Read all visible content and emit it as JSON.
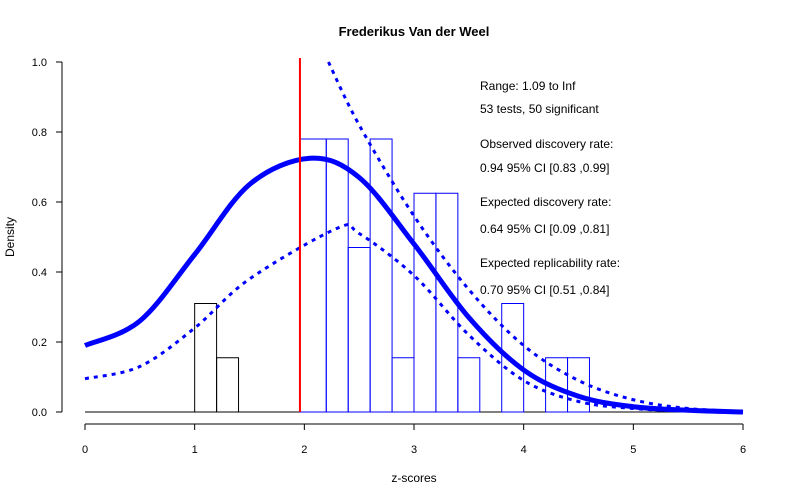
{
  "chart_data": {
    "type": "histogram",
    "title": "Frederikus Van der Weel",
    "xlabel": "z-scores",
    "ylabel": "Density",
    "xlim": [
      0,
      6
    ],
    "ylim": [
      0,
      1.0
    ],
    "x_ticks": [
      "0",
      "1",
      "2",
      "3",
      "4",
      "5",
      "6"
    ],
    "y_ticks": [
      "0.0",
      "0.2",
      "0.4",
      "0.6",
      "0.8",
      "1.0"
    ],
    "bin_width": 0.2,
    "bars_nonsignificant": [
      {
        "x0": 1.0,
        "x1": 1.2,
        "density": 0.31
      },
      {
        "x0": 1.2,
        "x1": 1.4,
        "density": 0.155
      }
    ],
    "bars_significant": [
      {
        "x0": 1.96,
        "x1": 2.2,
        "density": 0.78
      },
      {
        "x0": 2.2,
        "x1": 2.4,
        "density": 0.78
      },
      {
        "x0": 2.4,
        "x1": 2.6,
        "density": 0.47
      },
      {
        "x0": 2.6,
        "x1": 2.8,
        "density": 0.78
      },
      {
        "x0": 2.8,
        "x1": 3.0,
        "density": 0.155
      },
      {
        "x0": 3.0,
        "x1": 3.2,
        "density": 0.625
      },
      {
        "x0": 3.2,
        "x1": 3.4,
        "density": 0.625
      },
      {
        "x0": 3.4,
        "x1": 3.6,
        "density": 0.155
      },
      {
        "x0": 3.6,
        "x1": 3.8,
        "density": 0.0
      },
      {
        "x0": 3.8,
        "x1": 4.0,
        "density": 0.31
      },
      {
        "x0": 4.0,
        "x1": 4.2,
        "density": 0.0
      },
      {
        "x0": 4.2,
        "x1": 4.4,
        "density": 0.155
      },
      {
        "x0": 4.4,
        "x1": 4.6,
        "density": 0.155
      }
    ],
    "significance_line_x": 1.96,
    "solid_curve": {
      "x": [
        0,
        0.5,
        1.0,
        1.5,
        2.05,
        2.5,
        3.0,
        3.5,
        4.0,
        4.5,
        5.0,
        5.5,
        6.0
      ],
      "y": [
        0.19,
        0.26,
        0.45,
        0.65,
        0.725,
        0.67,
        0.48,
        0.27,
        0.12,
        0.045,
        0.015,
        0.005,
        0.0
      ]
    },
    "dotted_curve_lower": {
      "x": [
        0,
        0.5,
        1.0,
        1.5,
        2.3,
        2.5,
        3.0,
        3.5,
        4.0,
        4.5,
        5.0,
        5.5,
        6.0
      ],
      "y": [
        0.095,
        0.13,
        0.24,
        0.38,
        0.525,
        0.51,
        0.39,
        0.22,
        0.09,
        0.03,
        0.01,
        0.003,
        0.0
      ]
    },
    "dotted_curve_upper": {
      "x": [
        2.22,
        2.5,
        3.0,
        3.5,
        4.0,
        4.5,
        5.0,
        5.5,
        6.0
      ],
      "y": [
        1.0,
        0.82,
        0.56,
        0.35,
        0.19,
        0.09,
        0.035,
        0.01,
        0.002
      ]
    },
    "colors": {
      "bars_nonsig": "#000000",
      "bars_sig": "#0000ff",
      "curves": "#0000ff",
      "threshold": "#ff0000"
    },
    "annotations": [
      "Range: 1.09 to Inf",
      "53 tests, 50 significant",
      "Observed discovery rate:",
      "0.94  95% CI [0.83 ,0.99]",
      "Expected discovery rate:",
      "0.64  95% CI [0.09 ,0.81]",
      "Expected replicability rate:",
      "0.70  95% CI [0.51 ,0.84]"
    ]
  }
}
